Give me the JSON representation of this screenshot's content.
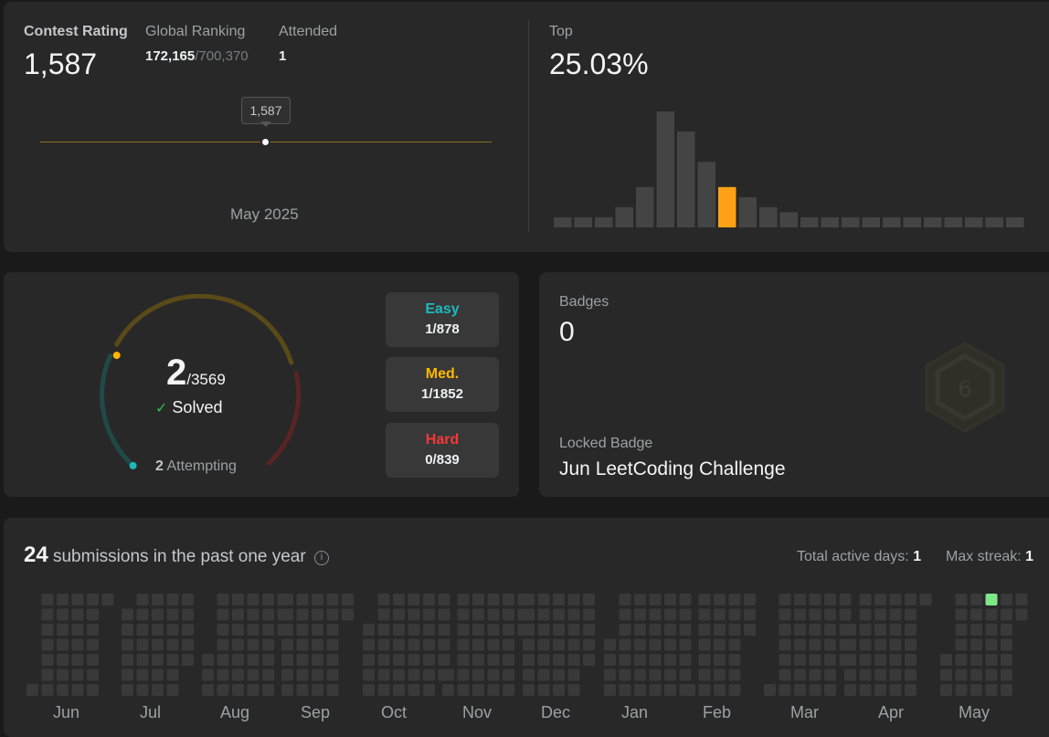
{
  "contest": {
    "rating_label": "Contest Rating",
    "rating": "1,587",
    "global_label": "Global Ranking",
    "global_rank": "172,165",
    "global_total": "/700,370",
    "attended_label": "Attended",
    "attended": "1",
    "tooltip": "1,587",
    "month": "May 2025",
    "top_label": "Top",
    "top_pct": "25.03%",
    "histogram": [
      2,
      2,
      2,
      4,
      8,
      23,
      19,
      13,
      8,
      6,
      4,
      3,
      2,
      2,
      2,
      2,
      2,
      2,
      2,
      2,
      2,
      2,
      2
    ],
    "highlight_index": 8,
    "highlight_color": "#ffa116",
    "bar_color": "#444444"
  },
  "solved": {
    "count": "2",
    "total": "/3569",
    "label": "Solved",
    "attempting_count": "2",
    "attempting_label": "Attempting",
    "easy": {
      "label": "Easy",
      "value": "1/878",
      "color": "#1cbaba"
    },
    "medium": {
      "label": "Med.",
      "value": "1/1852",
      "color": "#ffb700"
    },
    "hard": {
      "label": "Hard",
      "value": "0/839",
      "color": "#f63737"
    }
  },
  "badges": {
    "label": "Badges",
    "count": "0",
    "locked_label": "Locked Badge",
    "locked_name": "Jun LeetCoding Challenge"
  },
  "submissions": {
    "count": "24",
    "text": "submissions in the past one year",
    "active_label": "Total active days:",
    "active_value": "1",
    "streak_label": "Max streak:",
    "streak_value": "1",
    "months": [
      "Jun",
      "Jul",
      "Aug",
      "Sep",
      "Oct",
      "Nov",
      "Dec",
      "Jan",
      "Feb",
      "Mar",
      "Apr",
      "May"
    ],
    "empty_color": "#393939",
    "active_color": "#7ee787"
  }
}
